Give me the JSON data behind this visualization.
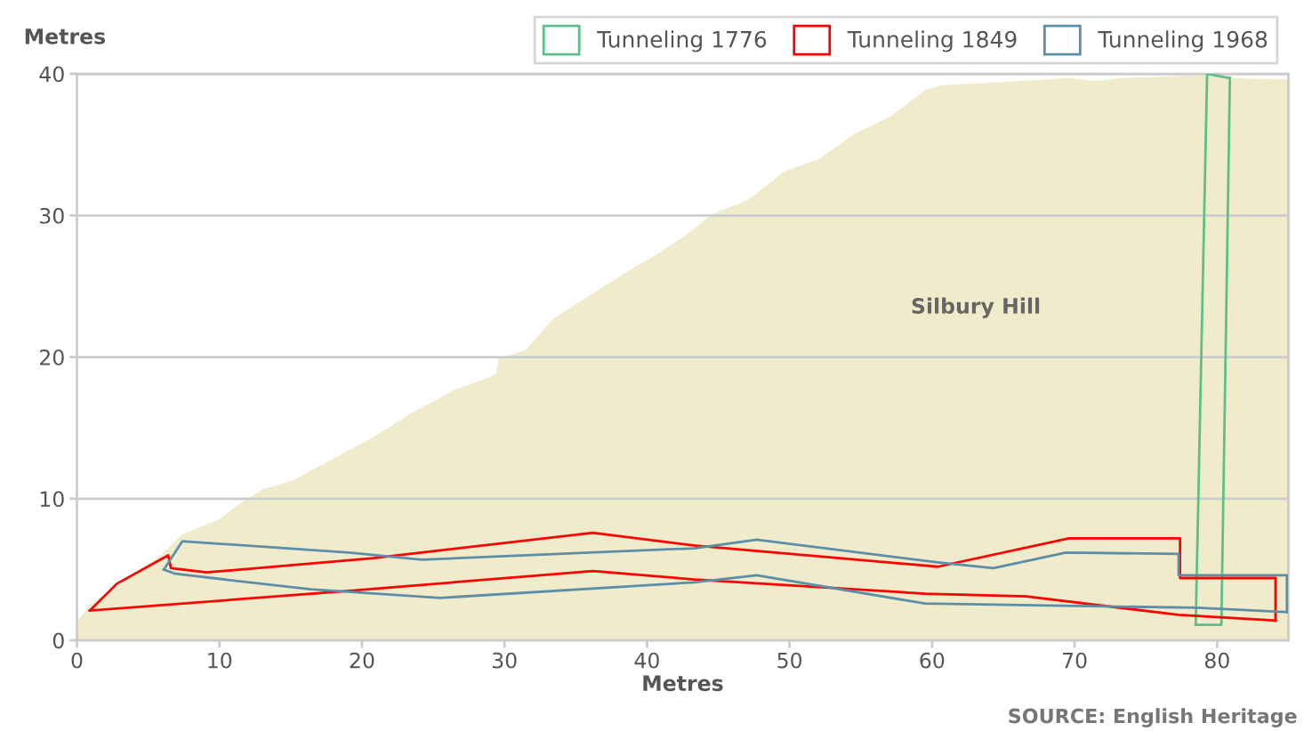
{
  "chart_data": {
    "type": "line",
    "xlabel": "Metres",
    "ylabel": "Metres",
    "xlim": [
      0,
      85
    ],
    "ylim": [
      0,
      40
    ],
    "xticks": [
      0,
      10,
      20,
      30,
      40,
      50,
      60,
      70,
      80
    ],
    "yticks": [
      0,
      10,
      20,
      30,
      40
    ],
    "grid": "y",
    "legend": "top right",
    "marker": "none",
    "line_style": "solid",
    "annotations": [
      "Silbury Hill",
      "SOURCE: English Heritage"
    ],
    "series": [
      {
        "type": "area",
        "color": "#f0ebca",
        "x": [
          0,
          0.9,
          5.9,
          7.4,
          9.9,
          11.5,
          13.1,
          15.2,
          18.1,
          20.9,
          23.4,
          26.5,
          28.7,
          29.4,
          29.6,
          31.5,
          33.4,
          35.9,
          38.4,
          40.9,
          42.7,
          44.6,
          47.1,
          49.6,
          52.1,
          54.6,
          57.1,
          59.6,
          60.8,
          64.6,
          69.6,
          71.5,
          73.3,
          79.0,
          80.8,
          85
        ],
        "values": [
          1.3,
          2.5,
          6.0,
          7.5,
          8.5,
          9.7,
          10.7,
          11.3,
          12.9,
          14.4,
          16.0,
          17.7,
          18.5,
          18.8,
          19.9,
          20.5,
          22.7,
          24.3,
          25.9,
          27.4,
          28.6,
          30.1,
          31.1,
          33.1,
          34.0,
          35.8,
          37.0,
          38.9,
          39.2,
          39.4,
          39.7,
          39.5,
          39.7,
          39.9,
          39.7,
          39.6
        ]
      },
      {
        "name": "Tunneling 1776",
        "color": "#5fbf8a",
        "x": [
          78.5,
          79.3,
          80.9
        ],
        "values": [
          1.1,
          40.0,
          39.7
        ]
      },
      {
        "color": "#5fbf8a",
        "x": [
          78.5,
          80.3,
          80.9
        ],
        "values": [
          1.1,
          1.1,
          39.7
        ]
      },
      {
        "name": "Tunneling 1849",
        "color": "#ff0000",
        "x": [
          0.9,
          2.8,
          6.4,
          6.6,
          9.1,
          20.8,
          36.2,
          43.3,
          60.4,
          69.6,
          77.4,
          77.4,
          84.1,
          84.1
        ],
        "values": [
          2.1,
          4.0,
          6.0,
          5.1,
          4.8,
          5.8,
          7.6,
          6.7,
          5.2,
          7.2,
          7.2,
          4.4,
          4.4,
          1.4
        ]
      },
      {
        "color": "#ff0000",
        "x": [
          0.9,
          19.1,
          36.2,
          43.3,
          59.5,
          66.6,
          77.3,
          84.1
        ],
        "values": [
          2.1,
          3.5,
          4.9,
          4.3,
          3.3,
          3.1,
          1.8,
          1.4
        ]
      },
      {
        "name": "Tunneling 1968",
        "color": "#5b8fa8",
        "x": [
          6.1,
          7.4,
          19.1,
          24.2,
          43.3,
          47.7,
          60.4,
          64.3,
          69.4,
          77.3,
          77.3,
          84.9,
          84.9
        ],
        "values": [
          5.0,
          7.0,
          6.2,
          5.7,
          6.5,
          7.1,
          5.5,
          5.1,
          6.2,
          6.1,
          4.6,
          4.6,
          2.0
        ]
      },
      {
        "color": "#5b8fa8",
        "x": [
          6.1,
          6.9,
          16.4,
          25.5,
          43.3,
          47.7,
          59.5,
          78.6,
          84.9
        ],
        "values": [
          5.0,
          4.7,
          3.6,
          3.0,
          4.1,
          4.6,
          2.6,
          2.3,
          2.0
        ]
      }
    ]
  }
}
